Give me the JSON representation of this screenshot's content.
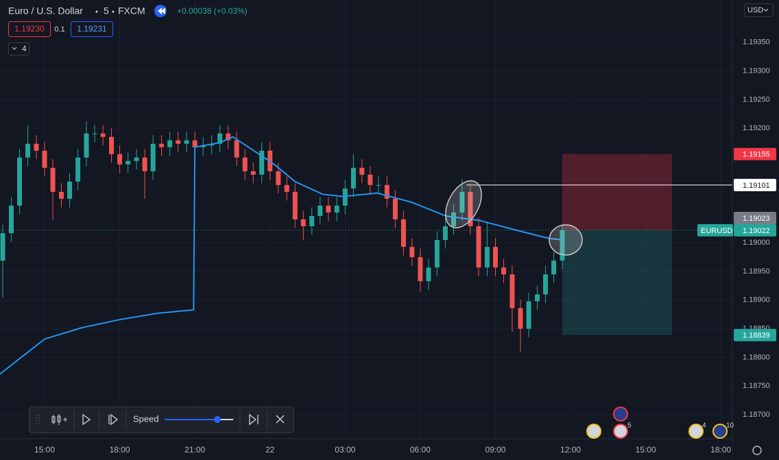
{
  "header": {
    "symbol": "Euro / U.S. Dollar",
    "interval": "5",
    "exchange": "FXCM",
    "change": "+0.00038 (+0.03%)",
    "bid": "1.19230",
    "spread": "0.1",
    "ask": "1.19231",
    "indicators": "4",
    "currency": "USD"
  },
  "chart_data": {
    "type": "candlestick",
    "x": [
      -1.67,
      -1.33,
      -1,
      -0.67,
      -0.33,
      0,
      0.33,
      0.67,
      1,
      1.33,
      1.67,
      2,
      2.33,
      2.67,
      3,
      3.33,
      3.67,
      4,
      4.33,
      4.67,
      5,
      5.33,
      5.67,
      6,
      6.33,
      6.67,
      7,
      7.33,
      7.67,
      8,
      8.33,
      8.67,
      9,
      9.33,
      9.67,
      10,
      10.33,
      10.67,
      11,
      11.33,
      11.67,
      12,
      12.33,
      12.67,
      13,
      13.33,
      13.67,
      14,
      14.33,
      14.67,
      15,
      15.33,
      15.67,
      16,
      16.33,
      16.67,
      17,
      17.33,
      17.67,
      18,
      18.33,
      18.67,
      19,
      19.33,
      19.67,
      20,
      20.33,
      20.67
    ],
    "open": [
      1.18969,
      1.19017,
      1.19065,
      1.19149,
      1.19173,
      1.19161,
      1.19131,
      1.19089,
      1.19077,
      1.19107,
      1.19149,
      1.19191,
      1.19191,
      1.19185,
      1.19155,
      1.19137,
      1.19143,
      1.19149,
      1.19125,
      1.19173,
      1.19167,
      1.19179,
      1.19173,
      1.19179,
      1.19167,
      1.1917,
      1.19173,
      1.19191,
      1.19179,
      1.19149,
      1.19125,
      1.19119,
      1.19161,
      1.19125,
      1.19101,
      1.19089,
      1.19041,
      1.19029,
      1.19047,
      1.19065,
      1.19053,
      1.19065,
      1.19095,
      1.19131,
      1.19119,
      1.19101,
      1.19101,
      1.19077,
      1.19041,
      1.18993,
      1.18975,
      1.18933,
      1.18957,
      1.19005,
      1.19029,
      1.19053,
      1.19089,
      1.19029,
      1.18957,
      1.18993,
      1.18957,
      1.18945,
      1.18886,
      1.1885,
      1.18898,
      1.1891,
      1.18945,
      1.18969
    ],
    "high": [
      1.19032,
      1.1908,
      1.19164,
      1.19205,
      1.19188,
      1.19176,
      1.19146,
      1.19104,
      1.19122,
      1.19164,
      1.19212,
      1.19206,
      1.19206,
      1.192,
      1.1917,
      1.19158,
      1.19164,
      1.19164,
      1.19188,
      1.19188,
      1.19194,
      1.19194,
      1.19194,
      1.19194,
      1.19185,
      1.19188,
      1.19206,
      1.19206,
      1.19194,
      1.19164,
      1.1914,
      1.19176,
      1.19176,
      1.1914,
      1.19116,
      1.19104,
      1.19056,
      1.19062,
      1.1908,
      1.1908,
      1.1908,
      1.1911,
      1.19155,
      1.19146,
      1.19134,
      1.19116,
      1.19116,
      1.19092,
      1.19056,
      1.19008,
      1.1899,
      1.18972,
      1.1902,
      1.19044,
      1.19068,
      1.19111,
      1.19104,
      1.19044,
      1.19035,
      1.19008,
      1.18972,
      1.1896,
      1.18901,
      1.18913,
      1.18925,
      1.1896,
      1.18984,
      1.1903
    ],
    "low": [
      1.18904,
      1.19002,
      1.1905,
      1.19134,
      1.19146,
      1.19116,
      1.1904,
      1.19062,
      1.19062,
      1.19092,
      1.19134,
      1.19176,
      1.1917,
      1.1914,
      1.19122,
      1.19122,
      1.19128,
      1.19077,
      1.1911,
      1.19152,
      1.19152,
      1.19158,
      1.19158,
      1.19152,
      1.19152,
      1.19155,
      1.19158,
      1.19164,
      1.19134,
      1.1911,
      1.19104,
      1.19104,
      1.1911,
      1.19086,
      1.19074,
      1.19026,
      1.19005,
      1.19014,
      1.19032,
      1.19038,
      1.19038,
      1.1905,
      1.1908,
      1.19104,
      1.19086,
      1.19086,
      1.19062,
      1.19026,
      1.18978,
      1.1896,
      1.18915,
      1.18918,
      1.18942,
      1.1899,
      1.19014,
      1.19038,
      1.19014,
      1.18942,
      1.18942,
      1.18942,
      1.1893,
      1.18845,
      1.1881,
      1.18835,
      1.18883,
      1.18895,
      1.1893,
      1.18954
    ],
    "close": [
      1.19017,
      1.19065,
      1.19149,
      1.19173,
      1.19161,
      1.19131,
      1.19089,
      1.19077,
      1.19107,
      1.19149,
      1.19191,
      1.19191,
      1.19185,
      1.19155,
      1.19137,
      1.19143,
      1.19149,
      1.19125,
      1.19173,
      1.19167,
      1.19179,
      1.19173,
      1.19179,
      1.19167,
      1.1917,
      1.19173,
      1.19191,
      1.19179,
      1.19149,
      1.19125,
      1.19119,
      1.19161,
      1.19125,
      1.19101,
      1.19089,
      1.19041,
      1.19029,
      1.19047,
      1.19065,
      1.19053,
      1.19065,
      1.19095,
      1.19131,
      1.19119,
      1.19101,
      1.19101,
      1.19077,
      1.19041,
      1.18993,
      1.18975,
      1.18933,
      1.18957,
      1.19005,
      1.19029,
      1.19053,
      1.19089,
      1.19029,
      1.18957,
      1.18993,
      1.18957,
      1.18945,
      1.18886,
      1.1885,
      1.18898,
      1.1891,
      1.18945,
      1.18969,
      1.19022
    ],
    "up_color": "#26a69a",
    "down_color": "#ef5350",
    "lines": [
      {
        "color": "#2196f3",
        "x": [
          -1.78,
          0,
          1.5,
          3,
          4.5,
          5.95,
          6,
          7,
          7.52,
          8.35,
          9.17,
          10,
          11.09,
          11.9,
          13.28,
          14.65,
          16.02,
          17.38,
          18.75,
          20.12,
          20.72
        ],
        "values": [
          1.18771,
          1.18832,
          1.18852,
          1.18866,
          1.18877,
          1.18883,
          1.19167,
          1.19175,
          1.19185,
          1.19161,
          1.19137,
          1.19107,
          1.19085,
          1.19081,
          1.19087,
          1.19071,
          1.19047,
          1.19039,
          1.19023,
          1.19008,
          1.19005
        ]
      }
    ],
    "xlim": [
      -1.78,
      27.46
    ],
    "xticks": [
      {
        "value": 0,
        "label": "15:00"
      },
      {
        "value": 3,
        "label": "18:00"
      },
      {
        "value": 6,
        "label": "21:00"
      },
      {
        "value": 9,
        "label": "22"
      },
      {
        "value": 12,
        "label": "03:00"
      },
      {
        "value": 15,
        "label": "06:00"
      },
      {
        "value": 18,
        "label": "09:00"
      },
      {
        "value": 21,
        "label": "12:00"
      },
      {
        "value": 24,
        "label": "15:00"
      },
      {
        "value": 27,
        "label": "18:00"
      }
    ],
    "ylim": [
      1.18658,
      1.19424
    ],
    "yticks": [
      {
        "value": 1.1935,
        "label": "1.19350"
      },
      {
        "value": 1.193,
        "label": "1.19300"
      },
      {
        "value": 1.1925,
        "label": "1.19250"
      },
      {
        "value": 1.192,
        "label": "1.19200"
      },
      {
        "value": 1.19,
        "label": "1.19000"
      },
      {
        "value": 1.1895,
        "label": "1.18950"
      },
      {
        "value": 1.189,
        "label": "1.18900"
      },
      {
        "value": 1.1885,
        "label": "1.18850"
      },
      {
        "value": 1.188,
        "label": "1.18800"
      },
      {
        "value": 1.1875,
        "label": "1.18750"
      },
      {
        "value": 1.187,
        "label": "1.18700"
      }
    ],
    "grid": true,
    "price_line": {
      "label": "EURUSD",
      "value": 1.19022
    },
    "marker": 1.19023,
    "level": {
      "x": 16.84,
      "value": 1.19101
    },
    "position": {
      "x": [
        20.67,
        25.05
      ],
      "entry": 1.19022,
      "stop": 1.19155,
      "target": 1.18839
    },
    "events": [
      {
        "count": "5"
      },
      {
        "count": "4"
      },
      {
        "count": "10"
      }
    ]
  },
  "replay": {
    "speed": "Speed"
  }
}
